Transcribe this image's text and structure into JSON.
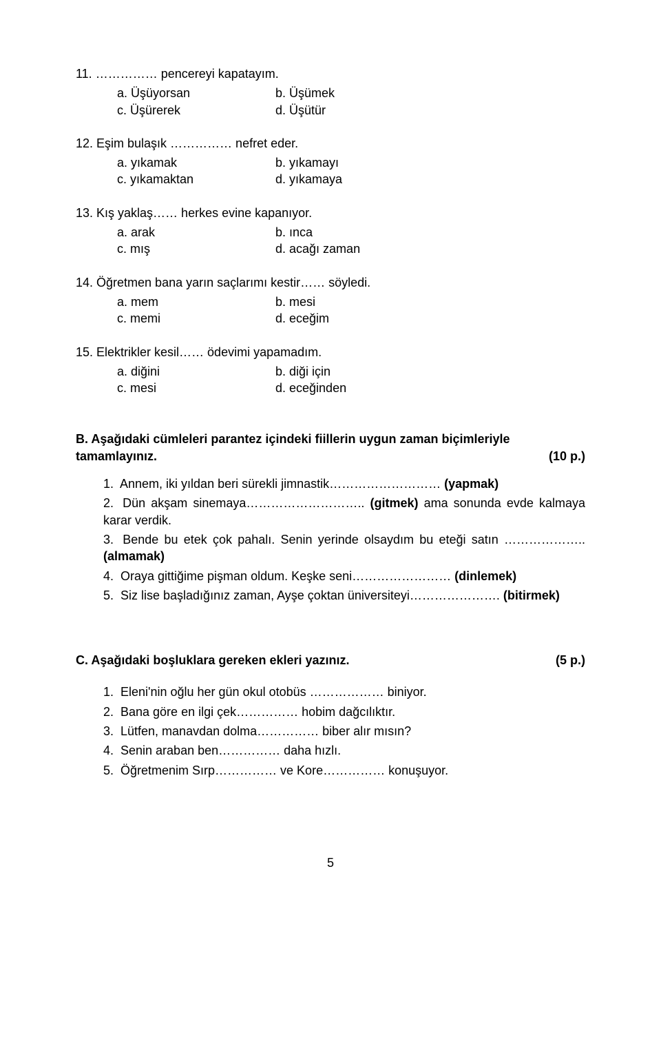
{
  "questions": [
    {
      "num": "11.",
      "stem": "……………  pencereyi kapatayım.",
      "a": "a.  Üşüyorsan",
      "b": "b.  Üşümek",
      "c": "c.  Üşürerek",
      "d": "d.  Üşütür"
    },
    {
      "num": "12.",
      "stem": "Eşim bulaşık ……………  nefret eder.",
      "a": "a.  yıkamak",
      "b": "b.  yıkamayı",
      "c": "c.  yıkamaktan",
      "d": "d.  yıkamaya"
    },
    {
      "num": "13.",
      "stem": "Kış yaklaş…… herkes evine kapanıyor.",
      "a": "a.  arak",
      "b": "b.  ınca",
      "c": "c.  mış",
      "d": "d.  acağı zaman"
    },
    {
      "num": "14.",
      "stem": "Öğretmen bana yarın saçlarımı kestir……  söyledi.",
      "a": "a.  mem",
      "b": "b.  mesi",
      "c": "c.  memi",
      "d": "d.  eceğim"
    },
    {
      "num": "15.",
      "stem": "Elektrikler kesil……  ödevimi yapamadım.",
      "a": "a.  diğini",
      "b": "b.  diği için",
      "c": "c.  mesi",
      "d": "d.  eceğinden"
    }
  ],
  "sectionB": {
    "heading": "B. Aşağıdaki cümleleri parantez içindeki fiillerin uygun zaman biçimleriyle tamamlayınız.",
    "points": "(10 p.)",
    "items": [
      {
        "n": "1.",
        "text_before": "Annem, iki yıldan beri sürekli jimnastik………………………  ",
        "bold": "(yapmak)",
        "text_after": ""
      },
      {
        "n": "2.",
        "text_before": "Dün akşam sinemaya………………………..  ",
        "bold": "(gitmek)",
        "text_after": " ama sonunda evde kalmaya karar verdik."
      },
      {
        "n": "3.",
        "text_before": "Bende  bu  etek  çok  pahalı.  Senin  yerinde  olsaydım  bu  eteği  satın  ………………..  ",
        "bold": "(almamak)",
        "text_after": ""
      },
      {
        "n": "4.",
        "text_before": "Oraya gittiğime pişman oldum. Keşke seni…………………… ",
        "bold": "(dinlemek)",
        "text_after": ""
      },
      {
        "n": "5.",
        "text_before": "Siz lise başladığınız zaman, Ayşe çoktan üniversiteyi………………….  ",
        "bold": "(bitirmek)",
        "text_after": ""
      }
    ]
  },
  "sectionC": {
    "heading": "C. Aşağıdaki boşluklara gereken ekleri yazınız.",
    "points": "(5 p.)",
    "items": [
      {
        "n": "1.",
        "text": "Eleni'nin oğlu her gün okul otobüs ……………… biniyor."
      },
      {
        "n": "2.",
        "text": "Bana göre en ilgi çek…………… hobim dağcılıktır."
      },
      {
        "n": "3.",
        "text": "Lütfen, manavdan dolma…………… biber alır mısın?"
      },
      {
        "n": "4.",
        "text": "Senin araban ben…………… daha hızlı."
      },
      {
        "n": "5.",
        "text": "Öğretmenim Sırp…………… ve Kore…………… konuşuyor."
      }
    ]
  },
  "pageNumber": "5"
}
